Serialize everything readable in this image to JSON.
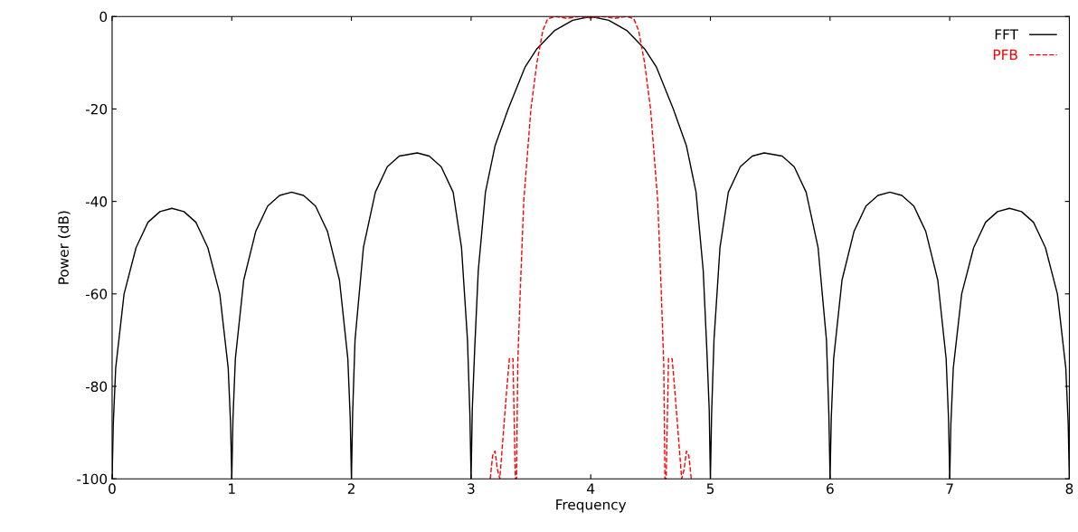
{
  "chart_data": {
    "type": "line",
    "xlabel": "Frequency",
    "ylabel": "Power (dB)",
    "xlim": [
      0,
      8
    ],
    "xticks": [
      0,
      1,
      2,
      3,
      4,
      5,
      6,
      7,
      8
    ],
    "ylim": [
      -100,
      0
    ],
    "yticks": [
      -100,
      -80,
      -60,
      -40,
      -20,
      0
    ],
    "legend": "top right",
    "grid": false,
    "series": [
      {
        "name": "FFT",
        "color": "#000000",
        "line_style": "solid",
        "x": [
          0,
          0.01,
          0.03,
          0.1,
          0.2,
          0.3,
          0.4,
          0.5,
          0.6,
          0.7,
          0.8,
          0.9,
          0.97,
          0.99,
          1,
          1.01,
          1.03,
          1.1,
          1.2,
          1.3,
          1.4,
          1.5,
          1.6,
          1.7,
          1.8,
          1.9,
          1.97,
          1.99,
          2,
          2.01,
          2.03,
          2.1,
          2.2,
          2.3,
          2.4,
          2.55,
          2.65,
          2.75,
          2.85,
          2.92,
          2.97,
          2.99,
          3,
          3.01,
          3.03,
          3.06,
          3.12,
          3.2,
          3.31,
          3.45,
          3.55,
          3.7,
          3.85,
          4,
          4.15,
          4.3,
          4.45,
          4.55,
          4.69,
          4.8,
          4.88,
          4.94,
          4.97,
          4.99,
          5,
          5.01,
          5.03,
          5.08,
          5.15,
          5.25,
          5.35,
          5.45,
          5.6,
          5.7,
          5.8,
          5.9,
          5.97,
          5.99,
          6,
          6.01,
          6.03,
          6.1,
          6.2,
          6.3,
          6.4,
          6.5,
          6.6,
          6.7,
          6.8,
          6.9,
          6.97,
          6.99,
          7,
          7.01,
          7.03,
          7.1,
          7.2,
          7.3,
          7.4,
          7.5,
          7.6,
          7.7,
          7.8,
          7.9,
          7.97,
          7.99,
          8
        ],
        "values": [
          -100,
          -88,
          -76,
          -60,
          -50,
          -44.5,
          -42.2,
          -41.5,
          -42.2,
          -44.5,
          -50,
          -60,
          -76,
          -88,
          -100,
          -87,
          -74,
          -57,
          -46.5,
          -41,
          -38.7,
          -38,
          -38.7,
          -41,
          -46.5,
          -57,
          -74,
          -87,
          -100,
          -86,
          -70,
          -50,
          -38,
          -32.5,
          -30.2,
          -29.5,
          -30.2,
          -32.5,
          -38,
          -50,
          -70,
          -86,
          -100,
          -85,
          -72,
          -55,
          -38,
          -28,
          -20,
          -11,
          -7,
          -3,
          -0.8,
          0,
          -0.8,
          -3,
          -7,
          -11,
          -20,
          -28,
          -38,
          -55,
          -72,
          -85,
          -100,
          -86,
          -70,
          -50,
          -38,
          -32.5,
          -30.2,
          -29.5,
          -30.2,
          -32.5,
          -38,
          -50,
          -70,
          -86,
          -100,
          -87,
          -74,
          -57,
          -46.5,
          -41,
          -38.7,
          -38,
          -38.7,
          -41,
          -46.5,
          -57,
          -74,
          -87,
          -100,
          -88,
          -76,
          -60,
          -50,
          -44.5,
          -42.2,
          -41.5,
          -42.2,
          -44.5,
          -50,
          -60,
          -76,
          -88,
          -100
        ]
      },
      {
        "name": "PFB",
        "color": "#ff0000",
        "line_style": "dashed",
        "x": [
          3.16,
          3.18,
          3.2,
          3.22,
          3.24,
          3.27,
          3.3,
          3.32,
          3.35,
          3.37,
          3.38,
          3.39,
          3.41,
          3.44,
          3.5,
          3.55,
          3.6,
          3.64,
          3.7,
          3.8,
          3.9,
          4,
          4.1,
          4.2,
          4.3,
          4.36,
          4.4,
          4.45,
          4.5,
          4.56,
          4.59,
          4.61,
          4.62,
          4.63,
          4.65,
          4.68,
          4.7,
          4.73,
          4.76,
          4.78,
          4.8,
          4.82,
          4.84
        ],
        "values": [
          -100,
          -95,
          -94,
          -98,
          -100,
          -90,
          -80,
          -74,
          -74,
          -100,
          -100,
          -75,
          -60,
          -40,
          -20,
          -10,
          -3,
          -0.5,
          0,
          -0.4,
          0,
          -0.3,
          0,
          -0.4,
          0,
          -0.5,
          -3,
          -10,
          -20,
          -40,
          -60,
          -75,
          -100,
          -100,
          -74,
          -74,
          -80,
          -90,
          -100,
          -98,
          -94,
          -95,
          -100
        ]
      }
    ]
  }
}
